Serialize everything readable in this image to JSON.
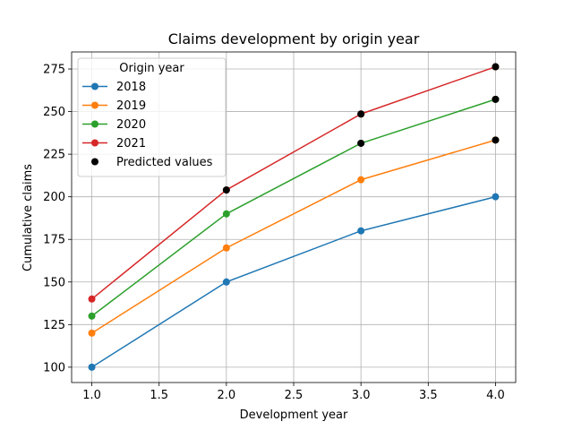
{
  "chart_data": {
    "type": "line",
    "title": "Claims development by origin year",
    "xlabel": "Development year",
    "ylabel": "Cumulative claims",
    "xlim": [
      0.85,
      4.15
    ],
    "ylim": [
      91,
      285
    ],
    "x_ticks": [
      1.0,
      1.5,
      2.0,
      2.5,
      3.0,
      3.5,
      4.0
    ],
    "x_tick_labels": [
      "1.0",
      "1.5",
      "2.0",
      "2.5",
      "3.0",
      "3.5",
      "4.0"
    ],
    "y_ticks": [
      100,
      125,
      150,
      175,
      200,
      225,
      250,
      275
    ],
    "y_tick_labels": [
      "100",
      "125",
      "150",
      "175",
      "200",
      "225",
      "250",
      "275"
    ],
    "grid": true,
    "legend": {
      "title": "Origin year",
      "placement": "top-left",
      "predicted_label": "Predicted values"
    },
    "x": [
      1,
      2,
      3,
      4
    ],
    "series": [
      {
        "name": "2018",
        "color": "#1f77b4",
        "values": [
          100,
          150,
          180,
          200
        ],
        "predicted": [
          false,
          false,
          false,
          false
        ]
      },
      {
        "name": "2019",
        "color": "#ff7f0e",
        "values": [
          120,
          170,
          210,
          233.3
        ],
        "predicted": [
          false,
          false,
          false,
          true
        ]
      },
      {
        "name": "2020",
        "color": "#2ca02c",
        "values": [
          130,
          190,
          231.4,
          257.2
        ],
        "predicted": [
          false,
          false,
          true,
          true
        ]
      },
      {
        "name": "2021",
        "color": "#d62728",
        "values": [
          140,
          204.0,
          248.6,
          276.3
        ],
        "predicted": [
          false,
          true,
          true,
          true
        ]
      }
    ],
    "predicted_color": "#000000"
  }
}
